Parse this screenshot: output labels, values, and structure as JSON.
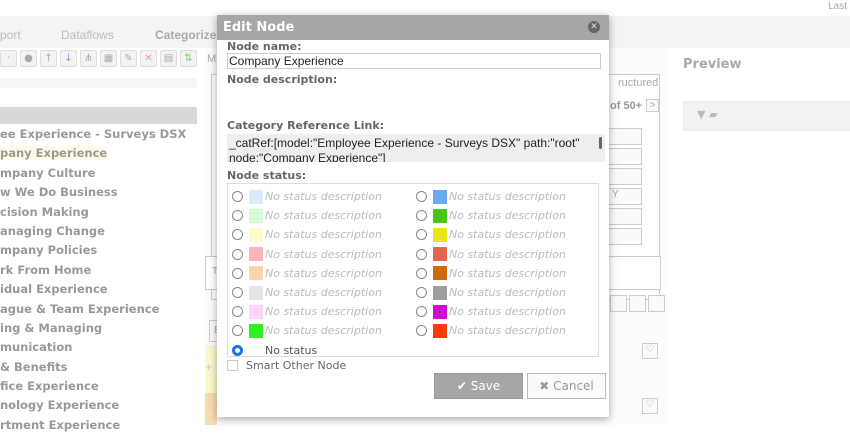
{
  "top": {
    "corner": "Last"
  },
  "tabs": [
    "port",
    "Dataflows",
    "Categorize"
  ],
  "tree": [
    "ee Experience - Surveys DSX",
    "pany Experience",
    "mpany Culture",
    "w We Do Business",
    "cision Making",
    "anaging Change",
    "mpany Policies",
    "rk From Home",
    "idual Experience",
    "ague & Team Experience",
    "ing & Managing",
    "munication",
    "& Benefits",
    "fice Experience",
    "nology Experience",
    "rtment Experience"
  ],
  "middle": {
    "mode_label": "M",
    "structured": "ructured",
    "pager": "of 50+",
    "next": ">",
    "ghost_y": "Y",
    "t_label": "T",
    "e_label": "E",
    "plus": "+"
  },
  "preview": {
    "title": "Preview",
    "icons": [
      "filter-icon",
      "folder-open-icon"
    ]
  },
  "modal": {
    "title": "Edit Node",
    "node_name_label": "Node name:",
    "node_name": "Company Experience",
    "node_description_label": "Node description:",
    "node_description": "",
    "ref_label": "Category Reference Link:",
    "ref_value": "_catRef:[model:\"Employee Experience - Surveys DSX\" path:\"root\" node:\"Company Experience\"]",
    "status_label": "Node status:",
    "statuses_left": [
      {
        "color": "#dbeafd",
        "text": "No status description"
      },
      {
        "color": "#d3fbd5",
        "text": "No status description"
      },
      {
        "color": "#fdfccc",
        "text": "No status description"
      },
      {
        "color": "#fbb4b4",
        "text": "No status description"
      },
      {
        "color": "#fcd3ab",
        "text": "No status description"
      },
      {
        "color": "#e5e5e5",
        "text": "No status description"
      },
      {
        "color": "#fbd3f8",
        "text": "No status description"
      },
      {
        "color": "#33ee22",
        "text": "No status description"
      }
    ],
    "statuses_right": [
      {
        "color": "#6aaaf2",
        "text": "No status description"
      },
      {
        "color": "#44c414",
        "text": "No status description"
      },
      {
        "color": "#e6e615",
        "text": "No status description"
      },
      {
        "color": "#e3674d",
        "text": "No status description"
      },
      {
        "color": "#cc6a0c",
        "text": "No status description"
      },
      {
        "color": "#9f9f9f",
        "text": "No status description"
      },
      {
        "color": "#d10bd0",
        "text": "No status description"
      },
      {
        "color": "#fb3a0b",
        "text": "No status description"
      }
    ],
    "no_status": "No status",
    "selected": "No status",
    "smart_other": "Smart Other Node",
    "smart_other_checked": false,
    "save": "Save",
    "cancel": "Cancel"
  }
}
